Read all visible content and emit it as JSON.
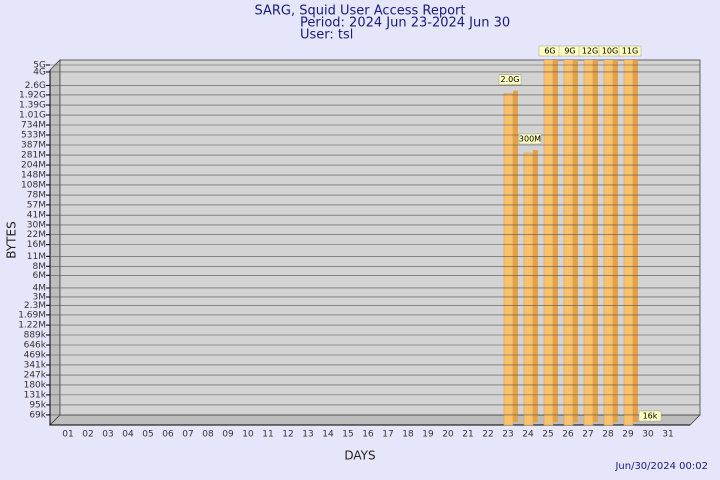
{
  "chart_data": {
    "type": "bar",
    "title": "SARG, Squid User Access Report",
    "subtitle": "Period: 2024 Jun 23-2024 Jun 30",
    "user": "User: tsl",
    "x_label": "DAYS",
    "y_label": "BYTES",
    "footer": "Jun/30/2024 00:02",
    "categories": [
      "01",
      "02",
      "03",
      "04",
      "05",
      "06",
      "07",
      "08",
      "09",
      "10",
      "11",
      "12",
      "13",
      "14",
      "15",
      "16",
      "17",
      "18",
      "19",
      "20",
      "21",
      "22",
      "23",
      "24",
      "25",
      "26",
      "27",
      "28",
      "29",
      "30",
      "31"
    ],
    "values": [
      null,
      null,
      null,
      null,
      null,
      null,
      null,
      null,
      null,
      null,
      null,
      null,
      null,
      null,
      null,
      null,
      null,
      null,
      null,
      null,
      null,
      null,
      2000000000,
      300000000,
      6000000000,
      9000000000,
      12000000000,
      10000000000,
      11000000000,
      16000,
      null
    ],
    "value_labels": [
      null,
      null,
      null,
      null,
      null,
      null,
      null,
      null,
      null,
      null,
      null,
      null,
      null,
      null,
      null,
      null,
      null,
      null,
      null,
      null,
      null,
      null,
      "2.0G",
      "300M",
      "6G",
      "9G",
      "12G",
      "10G",
      "11G",
      "16k",
      null
    ],
    "color": "#f8c26c",
    "yscale": "log",
    "ylim": [
      50000,
      5000000000
    ],
    "yticks": [
      {
        "value": 5000000000,
        "label": "5G"
      },
      {
        "value": 4000000000,
        "label": "4G"
      },
      {
        "value": 2600000000,
        "label": "2.6G"
      },
      {
        "value": 1920000000,
        "label": "1.92G"
      },
      {
        "value": 1390000000,
        "label": "1.39G"
      },
      {
        "value": 1010000000,
        "label": "1.01G"
      },
      {
        "value": 734000000,
        "label": "734M"
      },
      {
        "value": 533000000,
        "label": "533M"
      },
      {
        "value": 387000000,
        "label": "387M"
      },
      {
        "value": 281000000,
        "label": "281M"
      },
      {
        "value": 204000000,
        "label": "204M"
      },
      {
        "value": 148000000,
        "label": "148M"
      },
      {
        "value": 108000000,
        "label": "108M"
      },
      {
        "value": 78000000,
        "label": "78M"
      },
      {
        "value": 57000000,
        "label": "57M"
      },
      {
        "value": 41000000,
        "label": "41M"
      },
      {
        "value": 30000000,
        "label": "30M"
      },
      {
        "value": 22000000,
        "label": "22M"
      },
      {
        "value": 16000000,
        "label": "16M"
      },
      {
        "value": 11000000,
        "label": "11M"
      },
      {
        "value": 8000000,
        "label": "8M"
      },
      {
        "value": 6000000,
        "label": "6M"
      },
      {
        "value": 4000000,
        "label": "4M"
      },
      {
        "value": 3000000,
        "label": "3M"
      },
      {
        "value": 2300000,
        "label": "2.3M"
      },
      {
        "value": 1690000,
        "label": "1.69M"
      },
      {
        "value": 1220000,
        "label": "1.22M"
      },
      {
        "value": 889000,
        "label": "889k"
      },
      {
        "value": 646000,
        "label": "646k"
      },
      {
        "value": 469000,
        "label": "469k"
      },
      {
        "value": 341000,
        "label": "341k"
      },
      {
        "value": 247000,
        "label": "247k"
      },
      {
        "value": 180000,
        "label": "180k"
      },
      {
        "value": 131000,
        "label": "131k"
      },
      {
        "value": 95000,
        "label": "95k"
      },
      {
        "value": 69000,
        "label": "69k"
      }
    ],
    "grid": true
  }
}
